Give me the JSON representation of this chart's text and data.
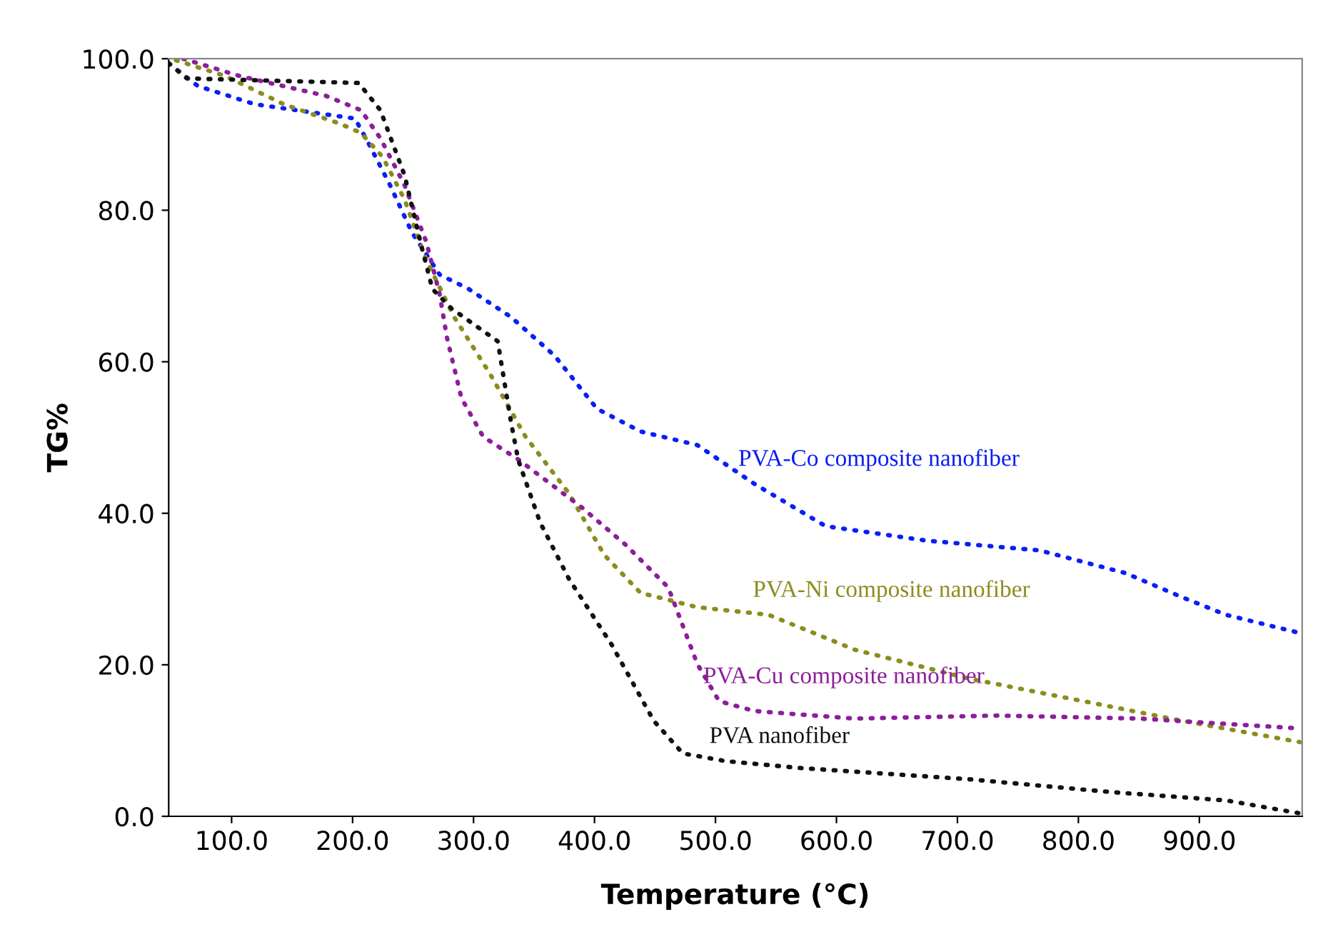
{
  "chart_data": {
    "type": "line",
    "xlabel": "Temperature (°C)",
    "ylabel": "TG%",
    "xlim": [
      48,
      985
    ],
    "ylim": [
      0,
      100
    ],
    "xticks": [
      {
        "value": 100,
        "label": "100.0"
      },
      {
        "value": 200,
        "label": "200.0"
      },
      {
        "value": 300,
        "label": "300.0"
      },
      {
        "value": 400,
        "label": "400.0"
      },
      {
        "value": 500,
        "label": "500.0"
      },
      {
        "value": 600,
        "label": "600.0"
      },
      {
        "value": 700,
        "label": "700.0"
      },
      {
        "value": 800,
        "label": "800.0"
      },
      {
        "value": 900,
        "label": "900.0"
      }
    ],
    "yticks": [
      {
        "value": 0,
        "label": "0.0"
      },
      {
        "value": 20,
        "label": "20.0"
      },
      {
        "value": 40,
        "label": "40.0"
      },
      {
        "value": 60,
        "label": "60.0"
      },
      {
        "value": 80,
        "label": "80.0"
      },
      {
        "value": 100,
        "label": "100.0"
      }
    ],
    "grid": false,
    "legend": false,
    "line_style": "dotted",
    "marker": "none",
    "series": [
      {
        "name": "PVA-Co composite nanofiber",
        "color": "#0a1ef5",
        "x": [
          48,
          72,
          119,
          202,
          213,
          231,
          249,
          272,
          296,
          331,
          367,
          402,
          438,
          485,
          532,
          591,
          674,
          768,
          839,
          886,
          922,
          983
        ],
        "values": [
          99.4,
          96.4,
          94,
          92.1,
          88.9,
          83.3,
          77.1,
          71.5,
          69.6,
          65.9,
          60.8,
          53.8,
          50.8,
          49,
          43.9,
          38.3,
          36.4,
          35.1,
          32.1,
          28.9,
          26.6,
          24.2
        ]
      },
      {
        "name": "PVA-Ni composite nanofiber",
        "color": "#8c8c1e",
        "x": [
          54,
          95,
          143,
          190,
          207,
          225,
          243,
          261,
          284,
          314,
          343,
          379,
          408,
          438,
          485,
          544,
          615,
          709,
          804,
          886,
          983
        ],
        "values": [
          99.8,
          97.7,
          94,
          91.4,
          90.2,
          87,
          81.4,
          73.4,
          65.9,
          58.3,
          50.1,
          42.6,
          34.5,
          29.5,
          27.6,
          26.6,
          22,
          18.2,
          15.2,
          12.6,
          9.8
        ]
      },
      {
        "name": "PVA-Cu composite nanofiber",
        "color": "#8c1e9a",
        "x": [
          60,
          107,
          178,
          207,
          223,
          243,
          261,
          272,
          278,
          290,
          308,
          337,
          390,
          426,
          461,
          485,
          503,
          532,
          615,
          733,
          851,
          983
        ],
        "values": [
          100,
          97.7,
          95.1,
          93.2,
          89.5,
          83.3,
          75.8,
          68.9,
          63.2,
          55.2,
          50.1,
          47.1,
          40.7,
          35.8,
          30.2,
          20.1,
          15.2,
          13.9,
          12.9,
          13.3,
          12.9,
          11.6
        ]
      },
      {
        "name": "PVA nanofiber",
        "color": "#111111",
        "x": [
          48,
          63,
          205,
          223,
          243,
          257,
          266,
          282,
          320,
          331,
          337,
          355,
          379,
          414,
          449,
          473,
          508,
          568,
          709,
          827,
          922,
          983
        ],
        "values": [
          99.4,
          97.4,
          96.8,
          93.2,
          84.6,
          75.2,
          69.6,
          67,
          62.7,
          52,
          47,
          38.8,
          31.3,
          22.7,
          12.6,
          8.3,
          7.3,
          6.4,
          4.9,
          3.2,
          2.1,
          0.4
        ]
      }
    ]
  }
}
